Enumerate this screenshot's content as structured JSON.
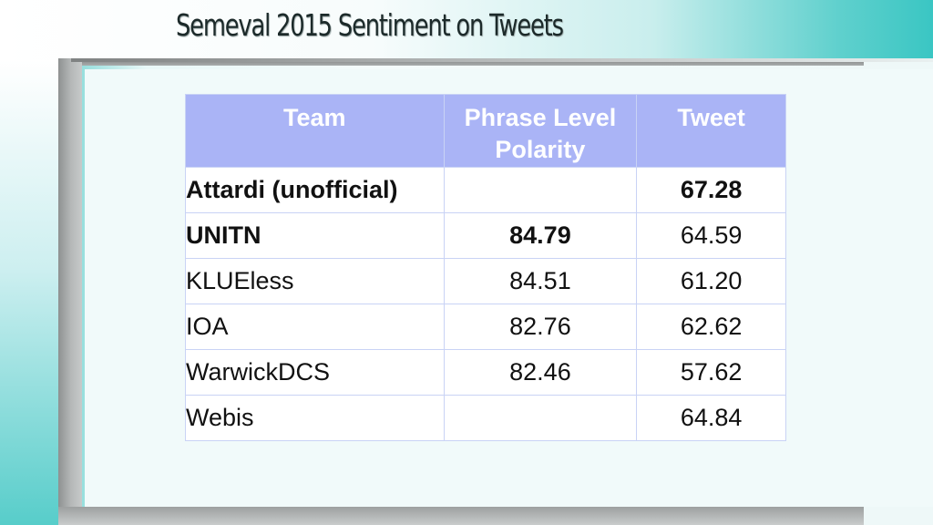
{
  "slide": {
    "title": "Semeval 2015 Sentiment on Tweets"
  },
  "table": {
    "headers": {
      "team": "Team",
      "phrase_line1": "Phrase Level",
      "phrase_line2": "Polarity",
      "tweet": "Tweet"
    },
    "rows": [
      {
        "team": "Attardi (unofficial)",
        "phrase": "",
        "tweet": "67.28",
        "team_bold": true,
        "phrase_bold": false,
        "tweet_bold": true
      },
      {
        "team": "UNITN",
        "phrase": "84.79",
        "tweet": "64.59",
        "team_bold": true,
        "phrase_bold": true,
        "tweet_bold": false
      },
      {
        "team": "KLUEless",
        "phrase": "84.51",
        "tweet": "61.20",
        "team_bold": false,
        "phrase_bold": false,
        "tweet_bold": false
      },
      {
        "team": "IOA",
        "phrase": "82.76",
        "tweet": "62.62",
        "team_bold": false,
        "phrase_bold": false,
        "tweet_bold": false
      },
      {
        "team": "WarwickDCS",
        "phrase": "82.46",
        "tweet": "57.62",
        "team_bold": false,
        "phrase_bold": false,
        "tweet_bold": false
      },
      {
        "team": "Webis",
        "phrase": "",
        "tweet": "64.84",
        "team_bold": false,
        "phrase_bold": false,
        "tweet_bold": false
      }
    ]
  },
  "colors": {
    "header_bg": "#aab4f6",
    "accent_teal": "#3ac6c3"
  }
}
